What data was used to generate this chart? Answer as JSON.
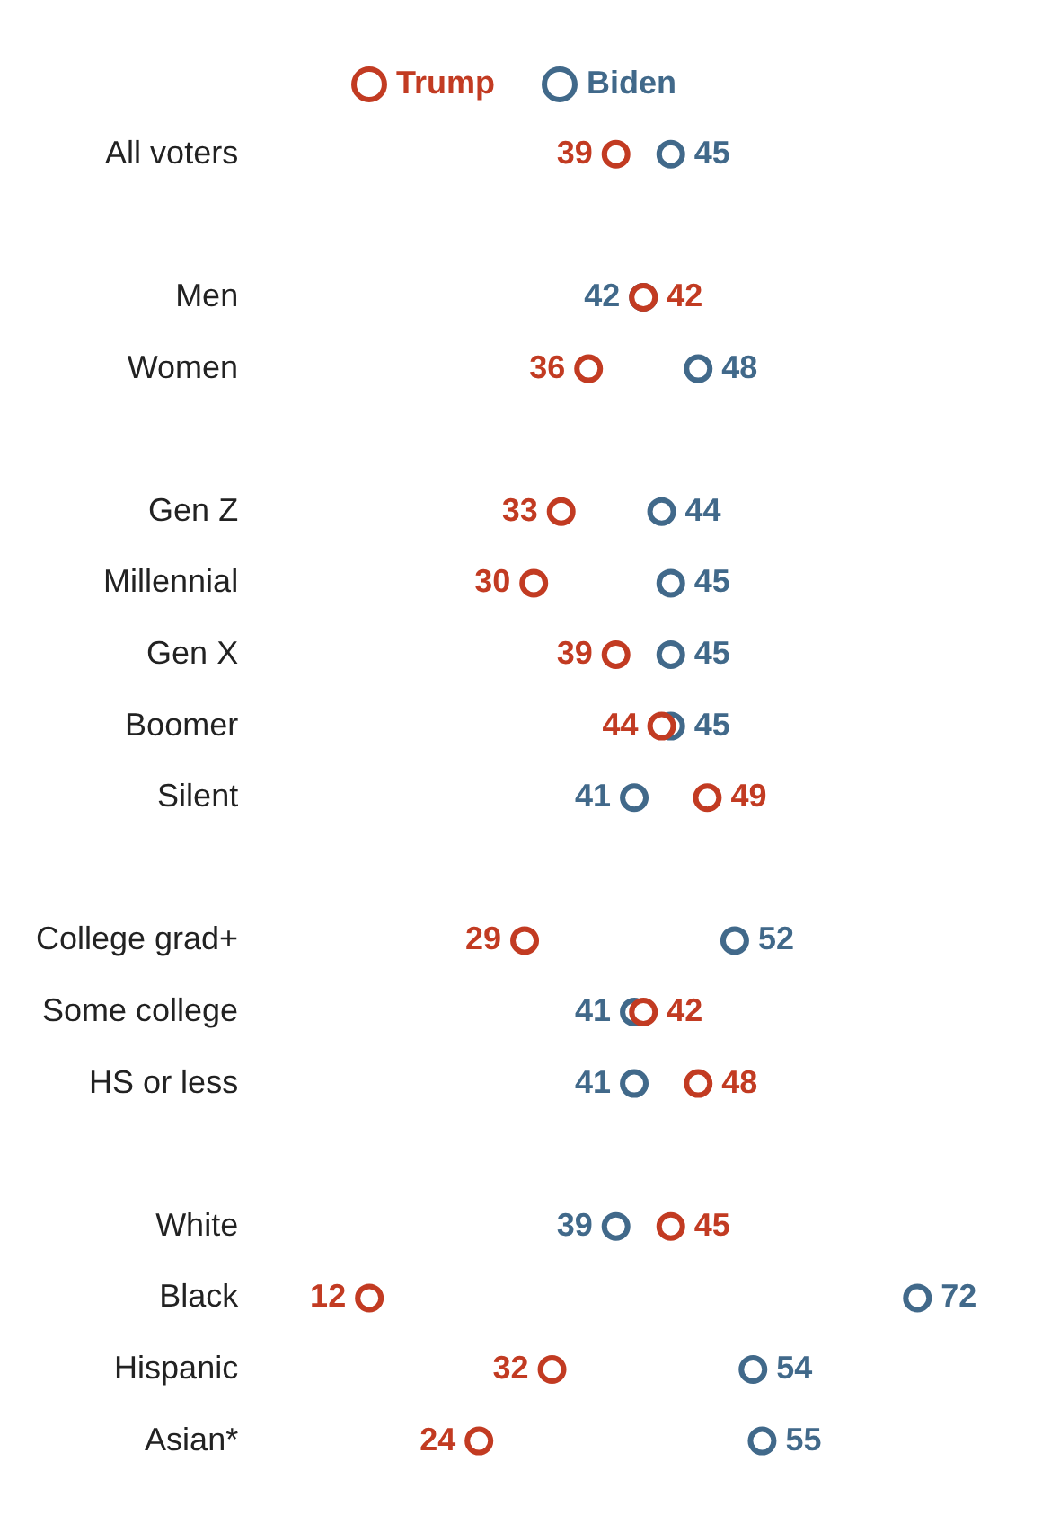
{
  "chart_data": {
    "type": "scatter",
    "orientation": "horizontal",
    "categories": [
      "All voters",
      null,
      "Men",
      "Women",
      null,
      "Gen Z",
      "Millennial",
      "Gen X",
      "Boomer",
      "Silent",
      null,
      "College grad+",
      "Some college",
      "HS or less",
      null,
      "White",
      "Black",
      "Hispanic",
      "Asian*"
    ],
    "series": [
      {
        "name": "Trump",
        "color": "#c23b22",
        "values": [
          39,
          null,
          42,
          36,
          null,
          33,
          30,
          39,
          44,
          49,
          null,
          29,
          42,
          48,
          null,
          45,
          12,
          32,
          24
        ]
      },
      {
        "name": "Biden",
        "color": "#41698a",
        "values": [
          45,
          null,
          42,
          48,
          null,
          44,
          45,
          45,
          45,
          41,
          null,
          52,
          41,
          41,
          null,
          39,
          72,
          54,
          55
        ]
      }
    ],
    "marker": "circle",
    "data_labels": true,
    "legend": "top",
    "grid": false,
    "tick_labels": "y"
  }
}
